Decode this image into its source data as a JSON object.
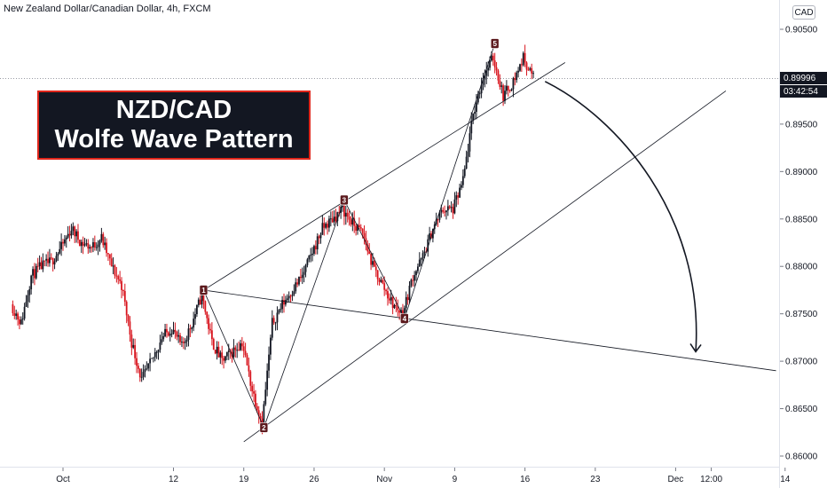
{
  "header": {
    "title": "New Zealand Dollar/Canadian Dollar, 4h, FXCM",
    "currency": "CAD"
  },
  "overlay": {
    "line1": "NZD/CAD",
    "line2": "Wolfe Wave Pattern"
  },
  "price_scale": {
    "last_price": "0.89996",
    "countdown": "03:42:54"
  },
  "colors": {
    "up_candle": "#131722",
    "down_candle": "#d8151e",
    "title_box_bg": "#131722",
    "title_box_border": "#e0261b",
    "wave_point_bg": "#5c1a1e"
  },
  "chart_data": {
    "type": "candlestick",
    "symbol": "NZD/CAD",
    "timeframe": "4h",
    "x_ticks": [
      "Oct",
      "12",
      "19",
      "26",
      "Nov",
      "9",
      "16",
      "23",
      "Dec",
      "12:00",
      "14"
    ],
    "y_ticks": [
      "0.86000",
      "0.86500",
      "0.87000",
      "0.87500",
      "0.88000",
      "0.88500",
      "0.89000",
      "0.89500",
      "0.90000",
      "0.90500"
    ],
    "ylim": [
      0.8595,
      0.9065
    ],
    "last_price": 0.89996,
    "wave_points": [
      {
        "label": "1",
        "date": "Oct 15",
        "price": 0.8775
      },
      {
        "label": "2",
        "date": "Oct 21",
        "price": 0.863
      },
      {
        "label": "3",
        "date": "Oct 29",
        "price": 0.887
      },
      {
        "label": "4",
        "date": "Nov 4",
        "price": 0.8745
      },
      {
        "label": "5",
        "date": "Nov 13",
        "price": 0.9035
      }
    ],
    "price_path": [
      [
        "Sep 26",
        0.876
      ],
      [
        "Sep 27",
        0.874
      ],
      [
        "Sep 28",
        0.879
      ],
      [
        "Sep 29",
        0.88
      ],
      [
        "Sep 30",
        0.8805
      ],
      [
        "Oct 1",
        0.882
      ],
      [
        "Oct 2",
        0.884
      ],
      [
        "Oct 3",
        0.8825
      ],
      [
        "Oct 4",
        0.882
      ],
      [
        "Oct 5",
        0.883
      ],
      [
        "Oct 6",
        0.88
      ],
      [
        "Oct 7",
        0.878
      ],
      [
        "Oct 8",
        0.872
      ],
      [
        "Oct 9",
        0.868
      ],
      [
        "Oct 10",
        0.87
      ],
      [
        "Oct 11",
        0.8725
      ],
      [
        "Oct 12",
        0.8735
      ],
      [
        "Oct 13",
        0.8715
      ],
      [
        "Oct 14",
        0.874
      ],
      [
        "Oct 15",
        0.877
      ],
      [
        "Oct 16",
        0.872
      ],
      [
        "Oct 17",
        0.87
      ],
      [
        "Oct 18",
        0.871
      ],
      [
        "Oct 19",
        0.872
      ],
      [
        "Oct 20",
        0.867
      ],
      [
        "Oct 21",
        0.8635
      ],
      [
        "Oct 22",
        0.874
      ],
      [
        "Oct 23",
        0.876
      ],
      [
        "Oct 24",
        0.8775
      ],
      [
        "Oct 25",
        0.879
      ],
      [
        "Oct 26",
        0.8815
      ],
      [
        "Oct 27",
        0.884
      ],
      [
        "Oct 28",
        0.885
      ],
      [
        "Oct 29",
        0.886
      ],
      [
        "Oct 30",
        0.8845
      ],
      [
        "Oct 31",
        0.8835
      ],
      [
        "Nov 1",
        0.88
      ],
      [
        "Nov 2",
        0.878
      ],
      [
        "Nov 3",
        0.876
      ],
      [
        "Nov 4",
        0.875
      ],
      [
        "Nov 5",
        0.879
      ],
      [
        "Nov 6",
        0.881
      ],
      [
        "Nov 7",
        0.884
      ],
      [
        "Nov 8",
        0.886
      ],
      [
        "Nov 9",
        0.886
      ],
      [
        "Nov 10",
        0.889
      ],
      [
        "Nov 11",
        0.896
      ],
      [
        "Nov 12",
        0.9
      ],
      [
        "Nov 13",
        0.902
      ],
      [
        "Nov 14",
        0.898
      ],
      [
        "Nov 15",
        0.8995
      ],
      [
        "Nov 16",
        0.902
      ],
      [
        "Nov 17",
        0.8999
      ]
    ],
    "lines": [
      {
        "name": "upper-channel",
        "from": [
          "Oct 15",
          0.8775
        ],
        "to": [
          "Nov 20",
          0.9015
        ]
      },
      {
        "name": "lower-channel",
        "from": [
          "Oct 19",
          0.8615
        ],
        "to": [
          "Dec 6",
          0.8985
        ]
      },
      {
        "name": "target-1-4",
        "from": [
          "Oct 15",
          0.8775
        ],
        "to": [
          "Dec 11",
          0.869
        ]
      }
    ],
    "target_arrow": {
      "from": [
        "Nov 18",
        0.8995
      ],
      "to": [
        "Dec 3",
        0.871
      ]
    }
  }
}
